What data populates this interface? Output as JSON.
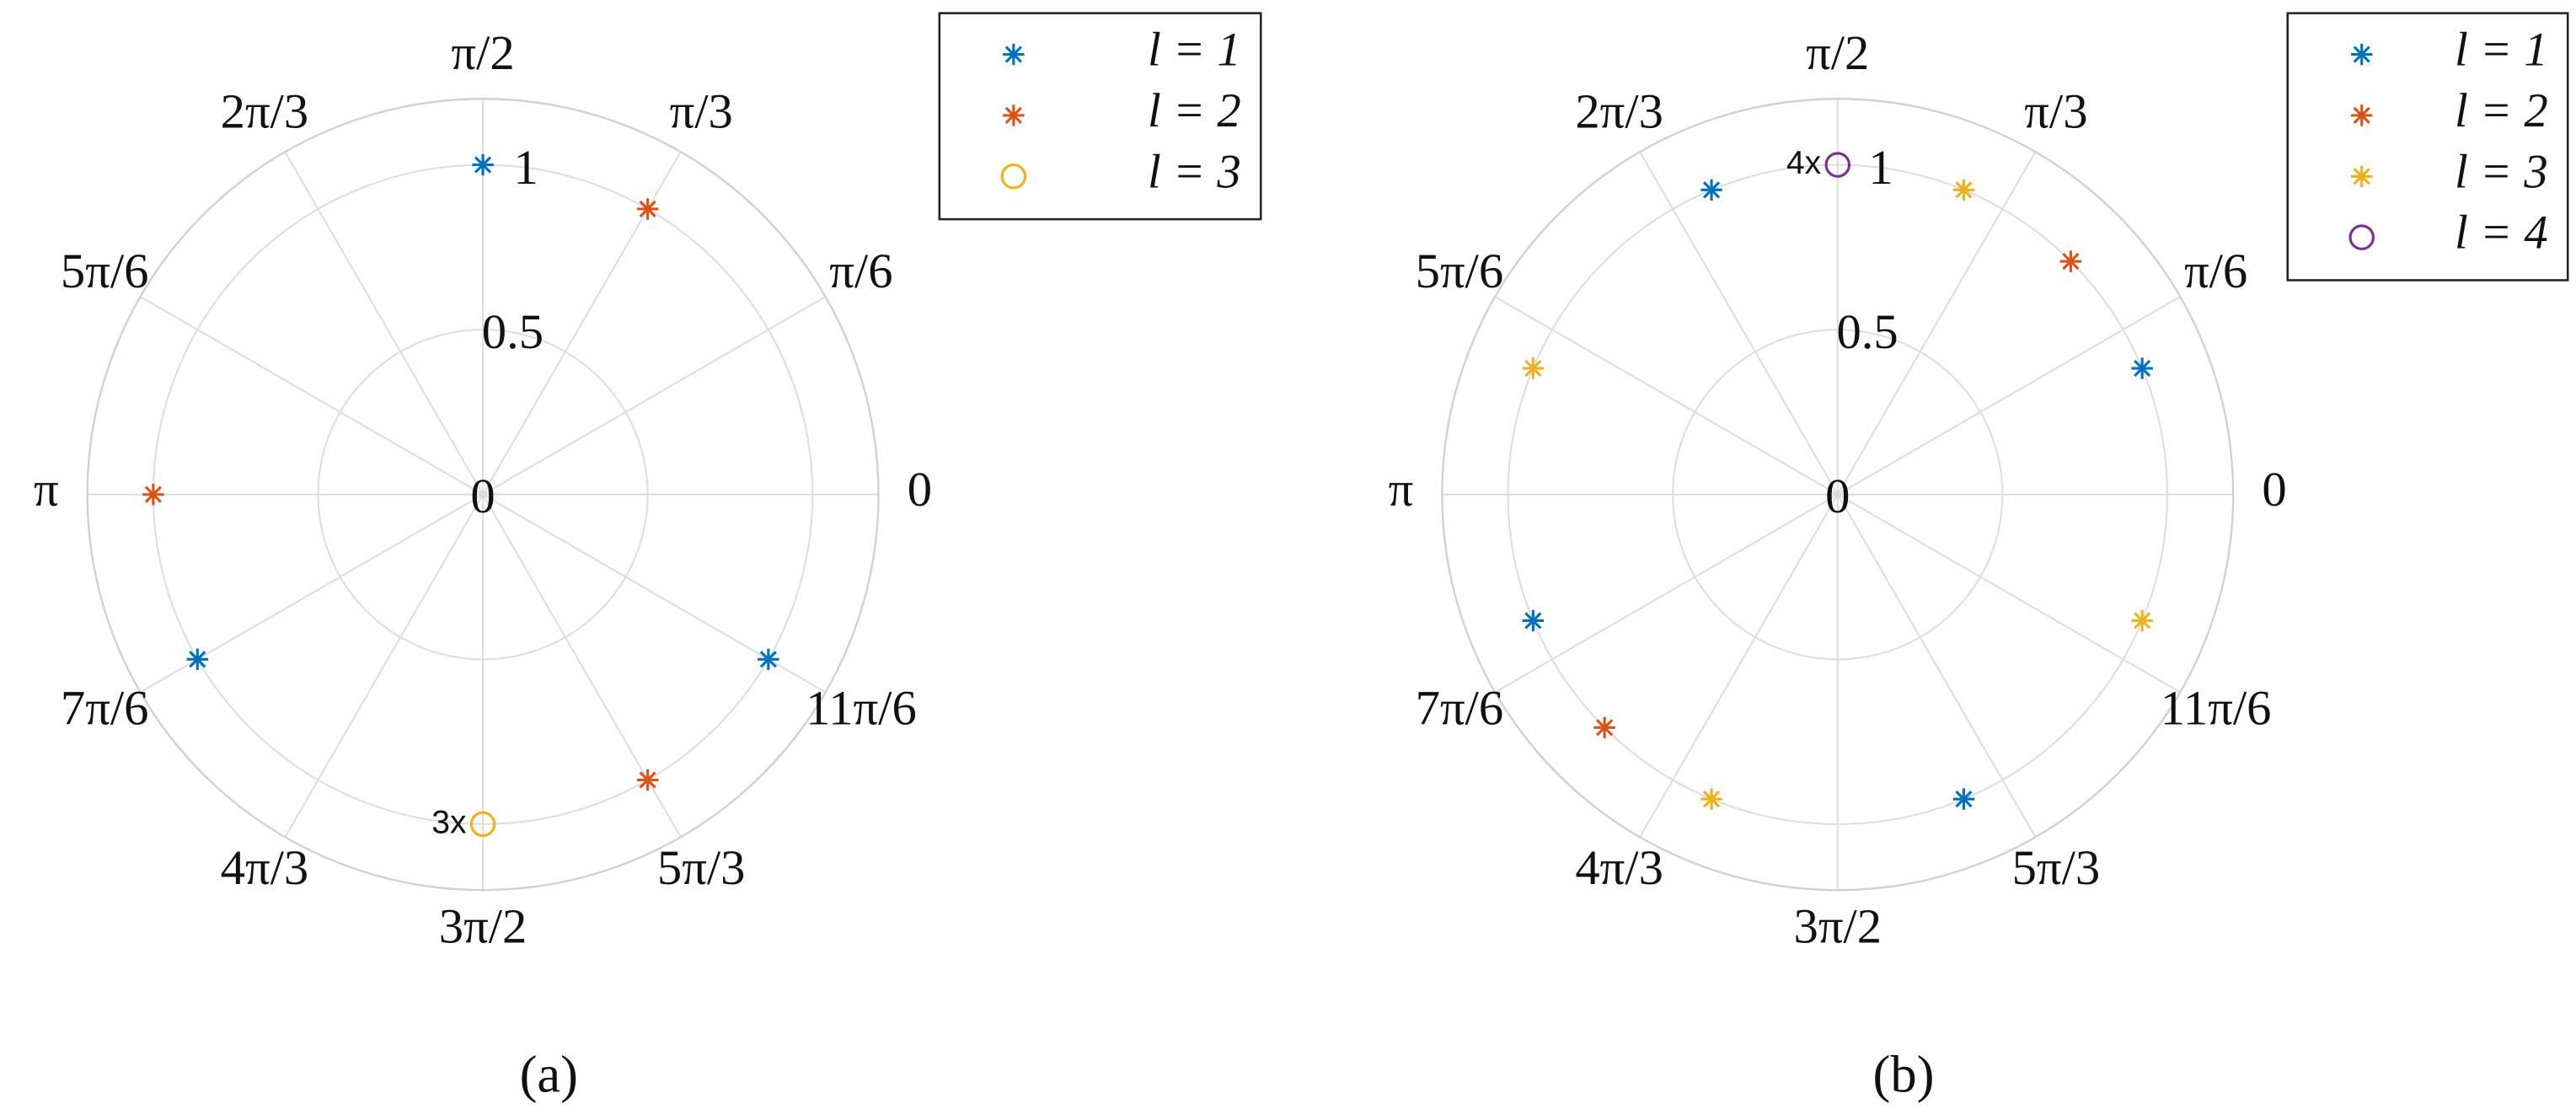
{
  "chart_data": [
    {
      "type": "polar",
      "caption": "(a)",
      "rlim": [
        0,
        1.2
      ],
      "rticks": [
        0,
        0.5,
        1
      ],
      "thetaticks": [
        {
          "value": 0,
          "label": "0"
        },
        {
          "value": 0.5236,
          "label": "π/6"
        },
        {
          "value": 1.0472,
          "label": "π/3"
        },
        {
          "value": 1.5708,
          "label": "π/2"
        },
        {
          "value": 2.0944,
          "label": "2π/3"
        },
        {
          "value": 2.618,
          "label": "5π/6"
        },
        {
          "value": 3.1416,
          "label": "π"
        },
        {
          "value": 3.6652,
          "label": "7π/6"
        },
        {
          "value": 4.1888,
          "label": "4π/3"
        },
        {
          "value": 4.7124,
          "label": "3π/2"
        },
        {
          "value": 5.236,
          "label": "5π/3"
        },
        {
          "value": 5.7596,
          "label": "11π/6"
        }
      ],
      "grid": true,
      "legend": "northeastoutside",
      "series": [
        {
          "name": "l = 1",
          "color": "#0072BD",
          "marker": "asterisk",
          "theta": [
            1.5708,
            3.6652,
            5.7596
          ],
          "r": [
            1,
            1,
            1
          ]
        },
        {
          "name": "l = 2",
          "color": "#D95319",
          "marker": "asterisk",
          "theta": [
            1.0472,
            3.1416,
            5.236
          ],
          "r": [
            1,
            1,
            1
          ]
        },
        {
          "name": "l = 3",
          "color": "#EDB120",
          "marker": "circle",
          "theta": [
            4.7124
          ],
          "r": [
            1
          ]
        }
      ],
      "annotations": [
        "3x"
      ]
    },
    {
      "type": "polar",
      "caption": "(b)",
      "rlim": [
        0,
        1.2
      ],
      "rticks": [
        0,
        0.5,
        1
      ],
      "thetaticks": [
        {
          "value": 0,
          "label": "0"
        },
        {
          "value": 0.5236,
          "label": "π/6"
        },
        {
          "value": 1.0472,
          "label": "π/3"
        },
        {
          "value": 1.5708,
          "label": "π/2"
        },
        {
          "value": 2.0944,
          "label": "2π/3"
        },
        {
          "value": 2.618,
          "label": "5π/6"
        },
        {
          "value": 3.1416,
          "label": "π"
        },
        {
          "value": 3.6652,
          "label": "7π/6"
        },
        {
          "value": 4.1888,
          "label": "4π/3"
        },
        {
          "value": 4.7124,
          "label": "3π/2"
        },
        {
          "value": 5.236,
          "label": "5π/3"
        },
        {
          "value": 5.7596,
          "label": "11π/6"
        }
      ],
      "grid": true,
      "legend": "northeastoutside",
      "series": [
        {
          "name": "l = 1",
          "color": "#0072BD",
          "marker": "asterisk",
          "theta": [
            0.3927,
            1.9635,
            3.5343,
            5.1051
          ],
          "r": [
            1,
            1,
            1,
            1
          ]
        },
        {
          "name": "l = 2",
          "color": "#D95319",
          "marker": "asterisk",
          "theta": [
            0.7854,
            3.927
          ],
          "r": [
            1,
            1
          ]
        },
        {
          "name": "l = 3",
          "color": "#EDB120",
          "marker": "asterisk",
          "theta": [
            1.1781,
            2.7489,
            4.3197,
            5.8905
          ],
          "r": [
            1,
            1,
            1,
            1
          ]
        },
        {
          "name": "l = 4",
          "color": "#7E2F8E",
          "marker": "circle",
          "theta": [
            1.5708
          ],
          "r": [
            1
          ]
        }
      ],
      "annotations": [
        "4x"
      ]
    }
  ]
}
